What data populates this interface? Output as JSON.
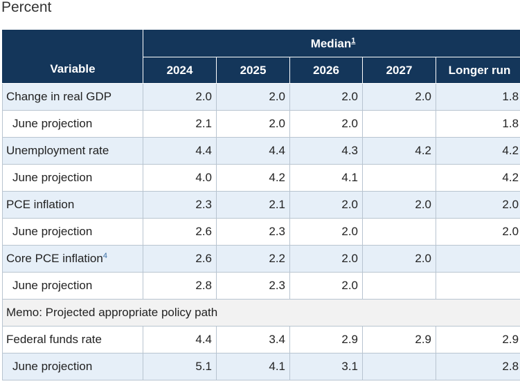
{
  "caption": "Percent",
  "header": {
    "variable": "Variable",
    "median": "Median",
    "median_footnote": "1",
    "years": [
      "2024",
      "2025",
      "2026",
      "2027",
      "Longer run"
    ]
  },
  "rows": [
    {
      "label": "Change in real GDP",
      "footnote": "",
      "values": [
        "2.0",
        "2.0",
        "2.0",
        "2.0",
        "1.8"
      ]
    },
    {
      "label": "June projection",
      "values": [
        "2.1",
        "2.0",
        "2.0",
        "",
        "1.8"
      ]
    },
    {
      "label": "Unemployment rate",
      "footnote": "",
      "values": [
        "4.4",
        "4.4",
        "4.3",
        "4.2",
        "4.2"
      ]
    },
    {
      "label": "June projection",
      "values": [
        "4.0",
        "4.2",
        "4.1",
        "",
        "4.2"
      ]
    },
    {
      "label": "PCE inflation",
      "footnote": "",
      "values": [
        "2.3",
        "2.1",
        "2.0",
        "2.0",
        "2.0"
      ]
    },
    {
      "label": "June projection",
      "values": [
        "2.6",
        "2.3",
        "2.0",
        "",
        "2.0"
      ]
    },
    {
      "label": "Core PCE inflation",
      "footnote": "4",
      "values": [
        "2.6",
        "2.2",
        "2.0",
        "2.0",
        ""
      ]
    },
    {
      "label": "June projection",
      "values": [
        "2.8",
        "2.3",
        "2.0",
        "",
        ""
      ]
    }
  ],
  "memo": "Memo: Projected appropriate policy path",
  "policy_rows": [
    {
      "label": "Federal funds rate",
      "values": [
        "4.4",
        "3.4",
        "2.9",
        "2.9",
        "2.9"
      ]
    },
    {
      "label": "June projection",
      "values": [
        "5.1",
        "4.1",
        "3.1",
        "",
        "2.8"
      ]
    }
  ]
}
